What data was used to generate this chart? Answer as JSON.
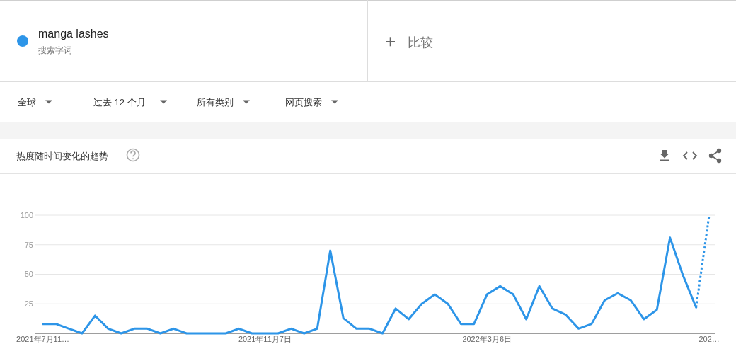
{
  "chart_data": {
    "type": "line",
    "title": "热度随时间变化的趋势",
    "x": [
      "2021-07-11",
      "2021-07-18",
      "2021-07-25",
      "2021-08-01",
      "2021-08-08",
      "2021-08-15",
      "2021-08-22",
      "2021-08-29",
      "2021-09-05",
      "2021-09-12",
      "2021-09-19",
      "2021-09-26",
      "2021-10-03",
      "2021-10-10",
      "2021-10-17",
      "2021-10-24",
      "2021-10-31",
      "2021-11-07",
      "2021-11-14",
      "2021-11-21",
      "2021-11-28",
      "2021-12-05",
      "2021-12-12",
      "2021-12-19",
      "2021-12-26",
      "2022-01-02",
      "2022-01-09",
      "2022-01-16",
      "2022-01-23",
      "2022-01-30",
      "2022-02-06",
      "2022-02-13",
      "2022-02-20",
      "2022-02-27",
      "2022-03-06",
      "2022-03-13",
      "2022-03-20",
      "2022-03-27",
      "2022-04-03",
      "2022-04-10",
      "2022-04-17",
      "2022-04-24",
      "2022-05-01",
      "2022-05-08",
      "2022-05-15",
      "2022-05-22",
      "2022-05-29",
      "2022-06-05",
      "2022-06-12",
      "2022-06-19",
      "2022-06-26",
      "2022-07-03"
    ],
    "series": [
      {
        "name": "manga lashes",
        "color": "#2d95e8",
        "values": [
          8,
          8,
          4,
          0,
          15,
          4,
          0,
          4,
          4,
          0,
          4,
          0,
          0,
          0,
          0,
          4,
          0,
          0,
          0,
          4,
          0,
          4,
          70,
          13,
          4,
          4,
          0,
          21,
          12,
          25,
          33,
          25,
          8,
          8,
          33,
          40,
          33,
          12,
          40,
          21,
          16,
          4,
          8,
          28,
          34,
          28,
          12,
          20,
          81,
          49,
          22,
          null
        ]
      },
      {
        "color": "#2d95e8",
        "line_style": "dotted",
        "values": [
          null,
          null,
          null,
          null,
          null,
          null,
          null,
          null,
          null,
          null,
          null,
          null,
          null,
          null,
          null,
          null,
          null,
          null,
          null,
          null,
          null,
          null,
          null,
          null,
          null,
          null,
          null,
          null,
          null,
          null,
          null,
          null,
          null,
          null,
          null,
          null,
          null,
          null,
          null,
          null,
          null,
          null,
          null,
          null,
          null,
          null,
          null,
          null,
          null,
          null,
          22,
          100
        ]
      }
    ],
    "xlim": [
      "2021-07-07",
      "2022-07-06"
    ],
    "ylim": [
      0,
      100
    ],
    "xticks": [
      {
        "value": "2021-07-11",
        "label": "2021年7月11…"
      },
      {
        "value": "2021-11-07",
        "label": "2021年11月7日"
      },
      {
        "value": "2022-03-06",
        "label": "2022年3月6日"
      },
      {
        "value": "2022-07-03",
        "label": "202…"
      }
    ],
    "yticks": [
      25,
      50,
      75,
      100
    ],
    "grid": "y",
    "legend": "top left",
    "line_style": "solid",
    "annotations": [
      "搜索字词",
      "比较",
      "全球",
      "过去 12 个月",
      "所有类别",
      "网页搜索"
    ]
  }
}
